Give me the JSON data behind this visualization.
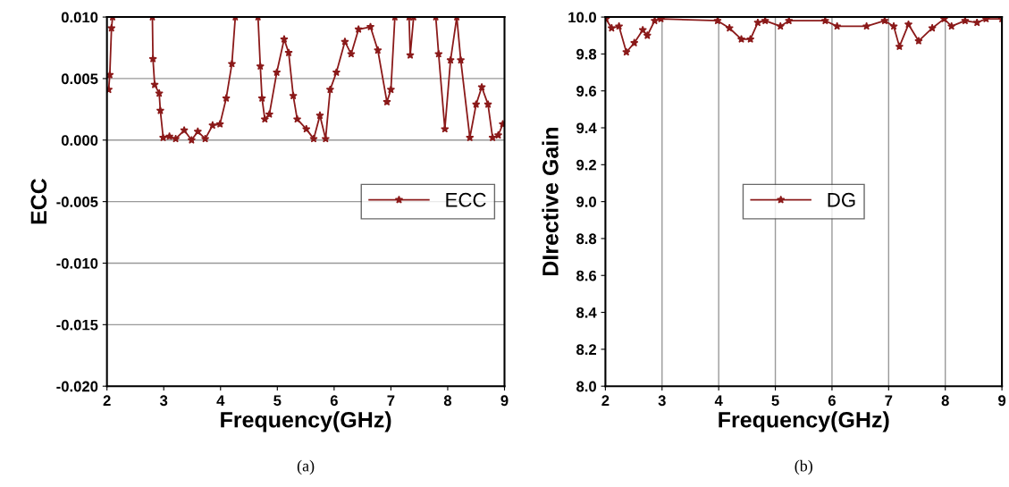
{
  "chart_data": [
    {
      "type": "line",
      "xlabel": "Frequency(GHz)",
      "ylabel": "ECC",
      "xlim": [
        2,
        9
      ],
      "xticks": [
        2,
        3,
        4,
        5,
        6,
        7,
        8,
        9
      ],
      "ylim": [
        -0.02,
        0.01
      ],
      "yticks": [
        {
          "value": -0.02,
          "label": "-0.020"
        },
        {
          "value": -0.015,
          "label": "-0.015"
        },
        {
          "value": -0.01,
          "label": "-0.010"
        },
        {
          "value": -0.005,
          "label": "-0.005"
        },
        {
          "value": 0,
          "label": "0.000"
        },
        {
          "value": 0.005,
          "label": "0.005"
        },
        {
          "value": 0.01,
          "label": "0.010"
        }
      ],
      "grid": "y",
      "legend": "center right",
      "marker": "star",
      "line_style": "solid",
      "annotations": [
        "(a)"
      ],
      "series": [
        {
          "name": "ECC",
          "color": "#8b1a1a",
          "x": [
            2.03,
            2.05,
            2.08,
            2.1,
            2.45,
            2.8,
            2.81,
            2.84,
            2.92,
            2.94,
            2.99,
            3.1,
            3.21,
            3.36,
            3.49,
            3.6,
            3.73,
            3.86,
            3.99,
            4.1,
            4.2,
            4.26,
            4.46,
            4.66,
            4.7,
            4.73,
            4.78,
            4.86,
            4.99,
            5.12,
            5.2,
            5.28,
            5.35,
            5.51,
            5.64,
            5.75,
            5.85,
            5.93,
            6.04,
            6.19,
            6.3,
            6.43,
            6.64,
            6.77,
            6.93,
            7.0,
            7.07,
            7.2,
            7.32,
            7.34,
            7.4,
            7.6,
            7.79,
            7.84,
            7.95,
            8.05,
            8.16,
            8.23,
            8.39,
            8.5,
            8.6,
            8.71,
            8.79,
            8.89,
            8.97
          ],
          "values": [
            0.0041,
            0.0053,
            0.0091,
            0.01,
            null,
            0.01,
            0.0066,
            0.0045,
            0.0038,
            0.0024,
            0.0002,
            0.0003,
            0.0001,
            0.0008,
            0.0,
            0.0007,
            0.0001,
            0.0012,
            0.0013,
            0.0034,
            0.0062,
            0.01,
            null,
            0.01,
            0.006,
            0.0034,
            0.0017,
            0.0021,
            0.0055,
            0.0082,
            0.0071,
            0.0036,
            0.0017,
            0.0009,
            0.0001,
            0.002,
            0.0001,
            0.0041,
            0.0055,
            0.008,
            0.007,
            0.009,
            0.0092,
            0.0073,
            0.0031,
            0.0041,
            0.01,
            null,
            0.01,
            0.0069,
            0.01,
            null,
            0.01,
            0.007,
            0.0009,
            0.0065,
            0.01,
            0.0065,
            0.0002,
            0.0029,
            0.0043,
            0.0029,
            0.0002,
            0.0004,
            0.0013
          ]
        }
      ]
    },
    {
      "type": "line",
      "xlabel": "Frequency(GHz)",
      "ylabel": "DIrective Gain",
      "xlim": [
        2,
        9
      ],
      "xticks": [
        2,
        3,
        4,
        5,
        6,
        7,
        8,
        9
      ],
      "ylim": [
        8.0,
        10.0
      ],
      "yticks": [
        {
          "value": 8.0,
          "label": "8.0"
        },
        {
          "value": 8.2,
          "label": "8.2"
        },
        {
          "value": 8.4,
          "label": "8.4"
        },
        {
          "value": 8.6,
          "label": "8.6"
        },
        {
          "value": 8.8,
          "label": "8.8"
        },
        {
          "value": 9.0,
          "label": "9.0"
        },
        {
          "value": 9.2,
          "label": "9.2"
        },
        {
          "value": 9.4,
          "label": "9.4"
        },
        {
          "value": 9.6,
          "label": "9.6"
        },
        {
          "value": 9.8,
          "label": "9.8"
        },
        {
          "value": 10.0,
          "label": "10.0"
        }
      ],
      "grid": "x",
      "legend": "center",
      "marker": "star",
      "line_style": "solid",
      "annotations": [
        "(b)"
      ],
      "series": [
        {
          "name": "DG",
          "color": "#8b1a1a",
          "x": [
            2.01,
            2.11,
            2.24,
            2.37,
            2.51,
            2.66,
            2.74,
            2.87,
            2.98,
            3.98,
            4.19,
            4.4,
            4.56,
            4.69,
            4.82,
            5.09,
            5.24,
            5.88,
            6.09,
            6.61,
            6.93,
            7.09,
            7.19,
            7.35,
            7.53,
            7.77,
            7.98,
            8.11,
            8.35,
            8.56,
            8.72,
            9.0
          ],
          "values": [
            9.99,
            9.94,
            9.95,
            9.81,
            9.86,
            9.93,
            9.9,
            9.98,
            9.99,
            9.98,
            9.94,
            9.88,
            9.88,
            9.97,
            9.98,
            9.95,
            9.98,
            9.98,
            9.95,
            9.95,
            9.98,
            9.95,
            9.84,
            9.96,
            9.87,
            9.94,
            9.99,
            9.95,
            9.98,
            9.97,
            9.99,
            9.99
          ]
        }
      ]
    }
  ]
}
